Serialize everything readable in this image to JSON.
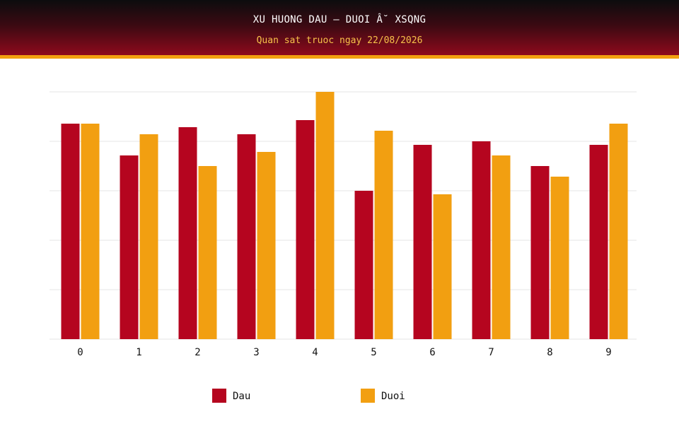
{
  "header": {
    "title": "XU HUONG DAU – DUOI Â˘ XSQNG",
    "subtitle": "Quan sat truoc ngay 22/08/2026"
  },
  "colors": {
    "dau": "#b5051f",
    "duoi": "#f29f11",
    "grid": "#e6e6e6"
  },
  "legend": {
    "dau_label": "Dau",
    "duoi_label": "Duoi"
  },
  "chart_data": {
    "type": "bar",
    "categories": [
      "0",
      "1",
      "2",
      "3",
      "4",
      "5",
      "6",
      "7",
      "8",
      "9"
    ],
    "series": [
      {
        "name": "Dau",
        "values": [
          61,
          52,
          60,
          58,
          62,
          42,
          55,
          56,
          49,
          55
        ]
      },
      {
        "name": "Duoi",
        "values": [
          61,
          58,
          49,
          53,
          70,
          59,
          41,
          52,
          46,
          61
        ]
      }
    ],
    "ylim": [
      0,
      70
    ],
    "grid": true,
    "y_tick_labels_shown": false,
    "legend_position": "bottom"
  }
}
